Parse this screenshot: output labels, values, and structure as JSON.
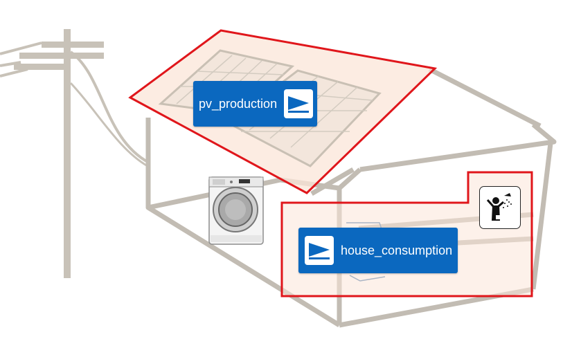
{
  "colors": {
    "tag_background": "#0b68bf",
    "area_outline": "#e0161b",
    "area_fill": "#fbe6d8",
    "house_line": "#c2bcb3"
  },
  "areas": {
    "pv": {
      "label": "pv_production",
      "icon": "sensor-arrow-icon",
      "area": "roof-solar-panels"
    },
    "house": {
      "label": "house_consumption",
      "icon": "sensor-arrow-icon",
      "area": "house-interior"
    }
  },
  "icons": {
    "power_pole": "power-pole-icon",
    "washing_machine": "washing-machine-icon",
    "shower": "shower-icon",
    "solar_panel": "solar-panel-icon"
  }
}
